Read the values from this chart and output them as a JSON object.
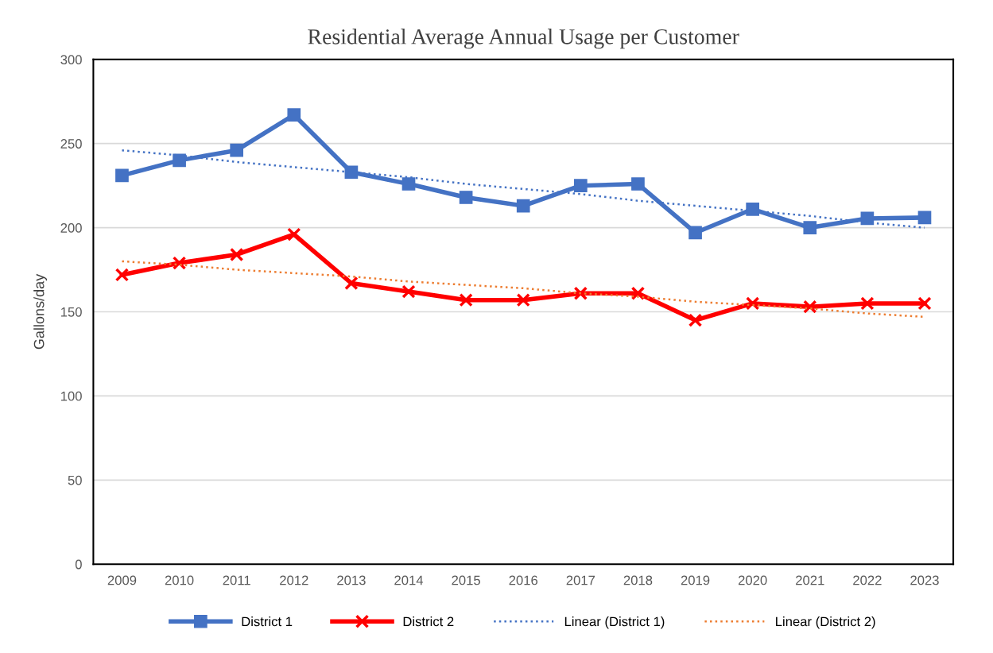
{
  "chart_data": {
    "type": "line",
    "title": "Residential Average Annual Usage per Customer",
    "ylabel": "Gallons/day",
    "categories": [
      "2009",
      "2010",
      "2011",
      "2012",
      "2013",
      "2014",
      "2015",
      "2016",
      "2017",
      "2018",
      "2019",
      "2020",
      "2021",
      "2022",
      "2023"
    ],
    "series": [
      {
        "name": "District 1",
        "color": "#4472c4",
        "marker": "square",
        "line_style": "solid",
        "values": [
          231,
          240,
          246,
          267,
          233,
          226,
          218,
          213,
          225,
          226,
          197,
          211,
          200,
          205.5,
          206
        ]
      },
      {
        "name": "District 2",
        "color": "#ff0000",
        "marker": "cross",
        "line_style": "solid",
        "values": [
          172,
          179,
          184,
          196,
          167,
          162,
          157,
          157,
          161,
          161,
          145,
          155,
          153,
          155,
          155
        ]
      },
      {
        "name": "Linear (District 1)",
        "color": "#4472c4",
        "marker": "none",
        "line_style": "dotted",
        "values": [
          246,
          243,
          239,
          236,
          233,
          230,
          226,
          223,
          220,
          216,
          213,
          210,
          207,
          203,
          200
        ]
      },
      {
        "name": "Linear (District 2)",
        "color": "#ed7d31",
        "marker": "none",
        "line_style": "dotted",
        "values": [
          180,
          178,
          175,
          173,
          171,
          168,
          166,
          164,
          161,
          159,
          156,
          154,
          152,
          149,
          147
        ]
      }
    ],
    "ylim": [
      0,
      300
    ],
    "yticks": [
      0,
      50,
      100,
      150,
      200,
      250,
      300
    ],
    "grid": "y",
    "legend": "bottom"
  }
}
